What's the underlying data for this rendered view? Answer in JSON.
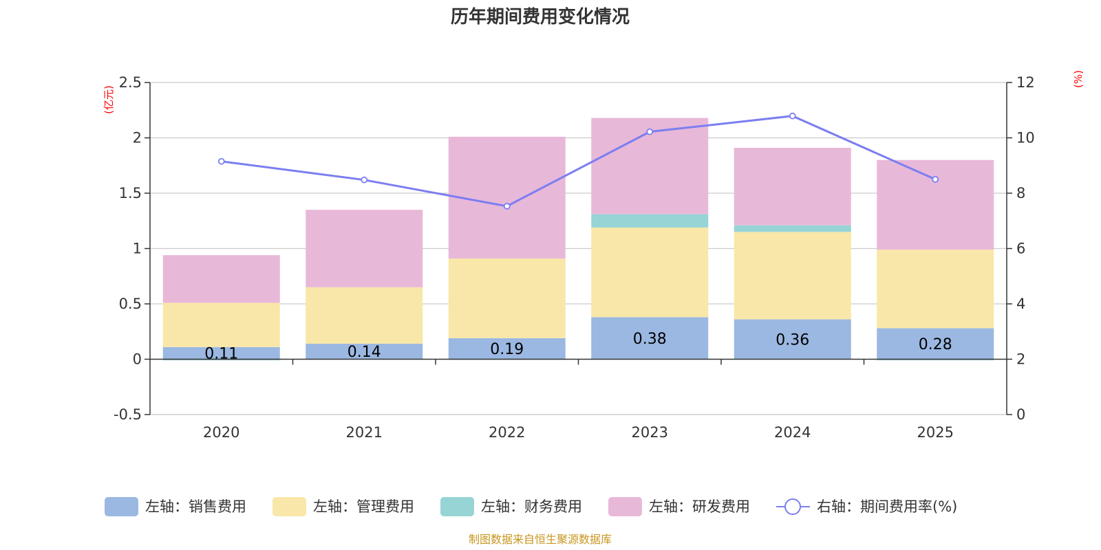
{
  "chart_data": {
    "type": "bar",
    "title": "历年期间费用变化情况",
    "categories": [
      "2020",
      "2021",
      "2022",
      "2023",
      "2024",
      "2025"
    ],
    "stacked": true,
    "series": [
      {
        "name": "左轴：销售费用",
        "axis": "left",
        "color": "#9bb8e2",
        "values": [
          0.11,
          0.14,
          0.19,
          0.38,
          0.36,
          0.28
        ],
        "labels": [
          "0.11",
          "0.14",
          "0.19",
          "0.38",
          "0.36",
          "0.28"
        ]
      },
      {
        "name": "左轴：管理费用",
        "axis": "left",
        "color": "#f8e7a8",
        "values": [
          0.4,
          0.51,
          0.72,
          0.81,
          0.79,
          0.71
        ]
      },
      {
        "name": "左轴：财务费用",
        "axis": "left",
        "color": "#96d4d6",
        "values": [
          -0.01,
          0.0,
          -0.005,
          0.12,
          0.06,
          -0.01
        ]
      },
      {
        "name": "左轴：研发费用",
        "axis": "left",
        "color": "#e8b8d9",
        "values": [
          0.43,
          0.7,
          1.1,
          0.87,
          0.7,
          0.81
        ]
      }
    ],
    "line": {
      "name": "右轴：期间费用率(%)",
      "axis": "right",
      "color": "#7b7ef0",
      "values": [
        9.15,
        8.48,
        7.53,
        10.22,
        10.79,
        8.5
      ]
    },
    "yleft": {
      "label": "(亿元)",
      "ylim": [
        -0.5,
        2.5
      ],
      "ticks": [
        2.5,
        2,
        1.5,
        1,
        0.5,
        0,
        -0.5
      ],
      "tick_labels": [
        "2.5",
        "2",
        "1.5",
        "1",
        "0.5",
        "0",
        "-0.5"
      ]
    },
    "yright": {
      "label": "(%)",
      "ylim": [
        0,
        12
      ],
      "ticks": [
        12,
        10,
        8,
        6,
        4,
        2,
        0
      ],
      "tick_labels": [
        "12",
        "10",
        "8",
        "6",
        "4",
        "2",
        "0"
      ]
    },
    "source": "制图数据来自恒生聚源数据库"
  }
}
